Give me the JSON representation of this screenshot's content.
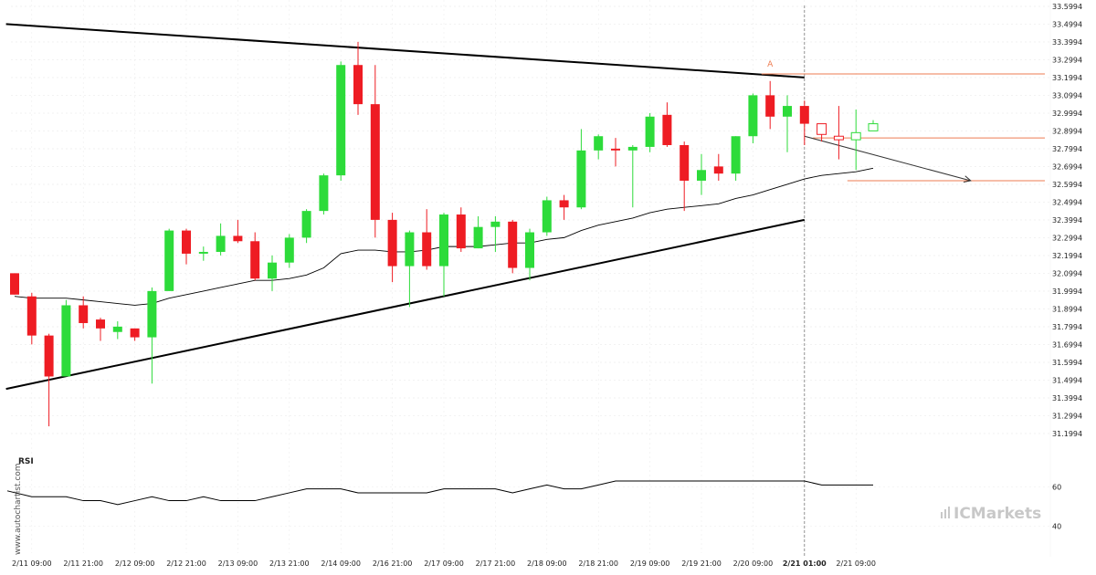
{
  "chart_data": {
    "type": "candlestick",
    "y_ticks": [
      "33.5994",
      "33.4994",
      "33.3994",
      "33.2994",
      "33.1994",
      "33.0994",
      "32.9994",
      "32.8994",
      "32.7994",
      "32.6994",
      "32.5994",
      "32.4994",
      "32.3994",
      "32.2994",
      "32.1994",
      "32.0994",
      "31.9994",
      "31.8994",
      "31.7994",
      "31.6994",
      "31.5994",
      "31.4994",
      "31.3994",
      "31.2994",
      "31.1994"
    ],
    "ylim": [
      31.14,
      33.6
    ],
    "x_ticks": [
      {
        "label": "2/11 09:00",
        "index": 1
      },
      {
        "label": "2/11 21:00",
        "index": 4
      },
      {
        "label": "2/12 09:00",
        "index": 7
      },
      {
        "label": "2/12 21:00",
        "index": 10
      },
      {
        "label": "2/13 09:00",
        "index": 13
      },
      {
        "label": "2/13 21:00",
        "index": 16
      },
      {
        "label": "2/14 09:00",
        "index": 19
      },
      {
        "label": "2/16 21:00",
        "index": 22
      },
      {
        "label": "2/17 09:00",
        "index": 25
      },
      {
        "label": "2/17 21:00",
        "index": 28
      },
      {
        "label": "2/18 09:00",
        "index": 31
      },
      {
        "label": "2/18 21:00",
        "index": 34
      },
      {
        "label": "2/19 09:00",
        "index": 37
      },
      {
        "label": "2/19 21:00",
        "index": 40
      },
      {
        "label": "2/20 09:00",
        "index": 43
      },
      {
        "label": "2/21 01:00",
        "index": 46,
        "bold": true
      },
      {
        "label": "2/21 09:00",
        "index": 49
      }
    ],
    "candles": [
      {
        "i": 0,
        "o": 32.1,
        "h": 32.1,
        "l": 31.98,
        "c": 31.98
      },
      {
        "i": 1,
        "o": 31.97,
        "h": 31.99,
        "l": 31.7,
        "c": 31.75
      },
      {
        "i": 2,
        "o": 31.75,
        "h": 31.76,
        "l": 31.24,
        "c": 31.52
      },
      {
        "i": 3,
        "o": 31.52,
        "h": 31.95,
        "l": 31.52,
        "c": 31.92
      },
      {
        "i": 4,
        "o": 31.92,
        "h": 31.97,
        "l": 31.79,
        "c": 31.82
      },
      {
        "i": 5,
        "o": 31.84,
        "h": 31.85,
        "l": 31.72,
        "c": 31.79
      },
      {
        "i": 6,
        "o": 31.77,
        "h": 31.83,
        "l": 31.73,
        "c": 31.8
      },
      {
        "i": 7,
        "o": 31.79,
        "h": 31.79,
        "l": 31.72,
        "c": 31.74
      },
      {
        "i": 8,
        "o": 31.74,
        "h": 32.02,
        "l": 31.48,
        "c": 32.0
      },
      {
        "i": 9,
        "o": 32.0,
        "h": 32.35,
        "l": 32.0,
        "c": 32.34
      },
      {
        "i": 10,
        "o": 32.34,
        "h": 32.35,
        "l": 32.15,
        "c": 32.21
      },
      {
        "i": 11,
        "o": 32.21,
        "h": 32.25,
        "l": 32.17,
        "c": 32.22
      },
      {
        "i": 12,
        "o": 32.22,
        "h": 32.38,
        "l": 32.2,
        "c": 32.31
      },
      {
        "i": 13,
        "o": 32.31,
        "h": 32.4,
        "l": 32.27,
        "c": 32.28
      },
      {
        "i": 14,
        "o": 32.28,
        "h": 32.33,
        "l": 32.06,
        "c": 32.07
      },
      {
        "i": 15,
        "o": 32.07,
        "h": 32.2,
        "l": 32.0,
        "c": 32.16
      },
      {
        "i": 16,
        "o": 32.16,
        "h": 32.32,
        "l": 32.13,
        "c": 32.3
      },
      {
        "i": 17,
        "o": 32.3,
        "h": 32.46,
        "l": 32.27,
        "c": 32.45
      },
      {
        "i": 18,
        "o": 32.45,
        "h": 32.66,
        "l": 32.43,
        "c": 32.65
      },
      {
        "i": 19,
        "o": 32.65,
        "h": 33.29,
        "l": 32.62,
        "c": 33.27
      },
      {
        "i": 20,
        "o": 33.27,
        "h": 33.4,
        "l": 32.99,
        "c": 33.05
      },
      {
        "i": 21,
        "o": 33.05,
        "h": 33.27,
        "l": 32.3,
        "c": 32.4
      },
      {
        "i": 22,
        "o": 32.4,
        "h": 32.44,
        "l": 32.05,
        "c": 32.14
      },
      {
        "i": 23,
        "o": 32.14,
        "h": 32.34,
        "l": 31.91,
        "c": 32.33
      },
      {
        "i": 24,
        "o": 32.33,
        "h": 32.46,
        "l": 32.12,
        "c": 32.14
      },
      {
        "i": 25,
        "o": 32.14,
        "h": 32.44,
        "l": 31.97,
        "c": 32.43
      },
      {
        "i": 26,
        "o": 32.43,
        "h": 32.47,
        "l": 32.22,
        "c": 32.24
      },
      {
        "i": 27,
        "o": 32.24,
        "h": 32.42,
        "l": 32.24,
        "c": 32.36
      },
      {
        "i": 28,
        "o": 32.36,
        "h": 32.42,
        "l": 32.22,
        "c": 32.39
      },
      {
        "i": 29,
        "o": 32.39,
        "h": 32.4,
        "l": 32.1,
        "c": 32.13
      },
      {
        "i": 30,
        "o": 32.13,
        "h": 32.35,
        "l": 32.06,
        "c": 32.33
      },
      {
        "i": 31,
        "o": 32.33,
        "h": 32.53,
        "l": 32.31,
        "c": 32.51
      },
      {
        "i": 32,
        "o": 32.51,
        "h": 32.54,
        "l": 32.4,
        "c": 32.47
      },
      {
        "i": 33,
        "o": 32.47,
        "h": 32.91,
        "l": 32.46,
        "c": 32.79
      },
      {
        "i": 34,
        "o": 32.79,
        "h": 32.88,
        "l": 32.74,
        "c": 32.87
      },
      {
        "i": 35,
        "o": 32.8,
        "h": 32.86,
        "l": 32.7,
        "c": 32.79
      },
      {
        "i": 36,
        "o": 32.79,
        "h": 32.82,
        "l": 32.47,
        "c": 32.81
      },
      {
        "i": 37,
        "o": 32.81,
        "h": 33.0,
        "l": 32.78,
        "c": 32.98
      },
      {
        "i": 38,
        "o": 32.99,
        "h": 33.06,
        "l": 32.81,
        "c": 32.82
      },
      {
        "i": 39,
        "o": 32.82,
        "h": 32.84,
        "l": 32.45,
        "c": 32.62
      },
      {
        "i": 40,
        "o": 32.62,
        "h": 32.77,
        "l": 32.54,
        "c": 32.68
      },
      {
        "i": 41,
        "o": 32.7,
        "h": 32.77,
        "l": 32.62,
        "c": 32.66
      },
      {
        "i": 42,
        "o": 32.66,
        "h": 32.87,
        "l": 32.62,
        "c": 32.87
      },
      {
        "i": 43,
        "o": 32.87,
        "h": 33.11,
        "l": 32.83,
        "c": 33.1
      },
      {
        "i": 44,
        "o": 33.1,
        "h": 33.18,
        "l": 32.91,
        "c": 32.98
      },
      {
        "i": 45,
        "o": 32.98,
        "h": 33.1,
        "l": 32.78,
        "c": 33.04
      },
      {
        "i": 46,
        "o": 33.04,
        "h": 33.07,
        "l": 32.82,
        "c": 32.94
      },
      {
        "i": 47,
        "o": 32.94,
        "h": 32.94,
        "l": 32.84,
        "c": 32.88
      },
      {
        "i": 48,
        "o": 32.87,
        "h": 33.04,
        "l": 32.74,
        "c": 32.85
      },
      {
        "i": 49,
        "o": 32.85,
        "h": 33.02,
        "l": 32.68,
        "c": 32.89
      },
      {
        "i": 50,
        "o": 32.9,
        "h": 32.96,
        "l": 32.9,
        "c": 32.94
      }
    ],
    "moving_average": [
      31.97,
      31.96,
      31.96,
      31.96,
      31.95,
      31.94,
      31.93,
      31.92,
      31.93,
      31.96,
      31.98,
      32.0,
      32.02,
      32.04,
      32.06,
      32.06,
      32.07,
      32.09,
      32.13,
      32.21,
      32.23,
      32.23,
      32.22,
      32.22,
      32.23,
      32.25,
      32.25,
      32.25,
      32.26,
      32.27,
      32.27,
      32.29,
      32.3,
      32.34,
      32.37,
      32.39,
      32.41,
      32.44,
      32.46,
      32.47,
      32.48,
      32.49,
      32.52,
      32.54,
      32.57,
      32.6,
      32.63,
      32.65,
      32.66,
      32.67,
      32.69
    ],
    "trendlines": [
      {
        "name": "resistance",
        "from": {
          "i": -0.5,
          "price": 33.5
        },
        "to": {
          "i": 46,
          "price": 33.2
        }
      },
      {
        "name": "support",
        "from": {
          "i": -0.5,
          "price": 31.45
        },
        "to": {
          "i": 46,
          "price": 32.4
        }
      }
    ],
    "horizontal_levels": [
      {
        "price": 33.22,
        "from_i": 43.5,
        "to_i": 51
      },
      {
        "price": 32.86,
        "from_i": 46.5,
        "to_i": 51
      },
      {
        "price": 32.62,
        "from_i": 48.5,
        "to_i": 51
      }
    ],
    "projection_arrow": {
      "from": {
        "i": 46,
        "price": 32.87
      },
      "to": {
        "i": 56,
        "price": 32.62
      }
    },
    "marker": {
      "label": "A",
      "i": 44,
      "price": 33.25
    },
    "vertical_marker_index": 46,
    "rsi": {
      "title": "RSI",
      "ylim": [
        30,
        75
      ],
      "ticks": [
        "60",
        "40"
      ],
      "tick_values": [
        60,
        40
      ],
      "values": [
        58,
        55,
        55,
        55,
        53,
        53,
        51,
        53,
        55,
        53,
        53,
        55,
        53,
        53,
        53,
        55,
        57,
        59,
        59,
        59,
        57,
        57,
        57,
        57,
        57,
        59,
        59,
        59,
        59,
        57,
        59,
        61,
        59,
        59,
        61,
        63,
        63,
        63,
        63,
        63,
        63,
        63,
        63,
        63,
        63,
        63,
        63,
        61,
        61,
        61,
        61
      ]
    },
    "colors": {
      "up": "#2ddb3a",
      "down": "#ee1c23",
      "line": "#000000",
      "level": "#ee7b50",
      "arrow": "#333333"
    }
  },
  "watermark": "www.autochartist.com",
  "brand": "ICMarkets"
}
